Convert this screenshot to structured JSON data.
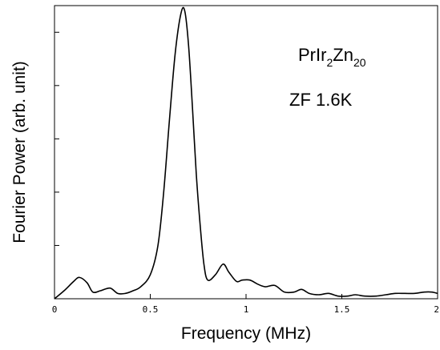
{
  "chart_data": {
    "type": "line",
    "title": "",
    "xlabel": "Frequency (MHz)",
    "ylabel": "Fourier Power (arb. unit)",
    "xlim": [
      0,
      2
    ],
    "ylim": [
      0,
      1.1
    ],
    "x_ticks": [
      0,
      0.5,
      1,
      1.5,
      2
    ],
    "x_tick_labels": [
      "0",
      "0.5",
      "1",
      "1.5",
      "2"
    ],
    "y_ticks": [
      0.2,
      0.4,
      0.6,
      0.8,
      1.0
    ],
    "y_tick_labels": [],
    "grid": false,
    "annotations": {
      "compound": {
        "prefix": "PrIr",
        "sub1": "2",
        "mid": "Zn",
        "sub2": "20"
      },
      "condition": "ZF 1.6K"
    },
    "series": [
      {
        "x": [
          0.0,
          0.05,
          0.1,
          0.13,
          0.17,
          0.2,
          0.24,
          0.29,
          0.33,
          0.37,
          0.41,
          0.45,
          0.5,
          0.54,
          0.57,
          0.6,
          0.63,
          0.66,
          0.68,
          0.7,
          0.72,
          0.74,
          0.76,
          0.78,
          0.8,
          0.84,
          0.88,
          0.91,
          0.95,
          0.98,
          1.02,
          1.06,
          1.1,
          1.15,
          1.2,
          1.25,
          1.29,
          1.33,
          1.38,
          1.43,
          1.48,
          1.53,
          1.57,
          1.62,
          1.68,
          1.73,
          1.78,
          1.83,
          1.88,
          1.93,
          1.97,
          2.0
        ],
        "y": [
          0.0,
          0.03,
          0.065,
          0.08,
          0.06,
          0.025,
          0.03,
          0.04,
          0.02,
          0.02,
          0.03,
          0.045,
          0.09,
          0.2,
          0.4,
          0.67,
          0.92,
          1.07,
          1.08,
          0.95,
          0.72,
          0.47,
          0.28,
          0.13,
          0.07,
          0.09,
          0.13,
          0.1,
          0.065,
          0.07,
          0.07,
          0.055,
          0.045,
          0.05,
          0.025,
          0.025,
          0.035,
          0.02,
          0.015,
          0.02,
          0.01,
          0.01,
          0.015,
          0.01,
          0.01,
          0.015,
          0.02,
          0.02,
          0.02,
          0.025,
          0.025,
          0.02
        ]
      }
    ]
  }
}
